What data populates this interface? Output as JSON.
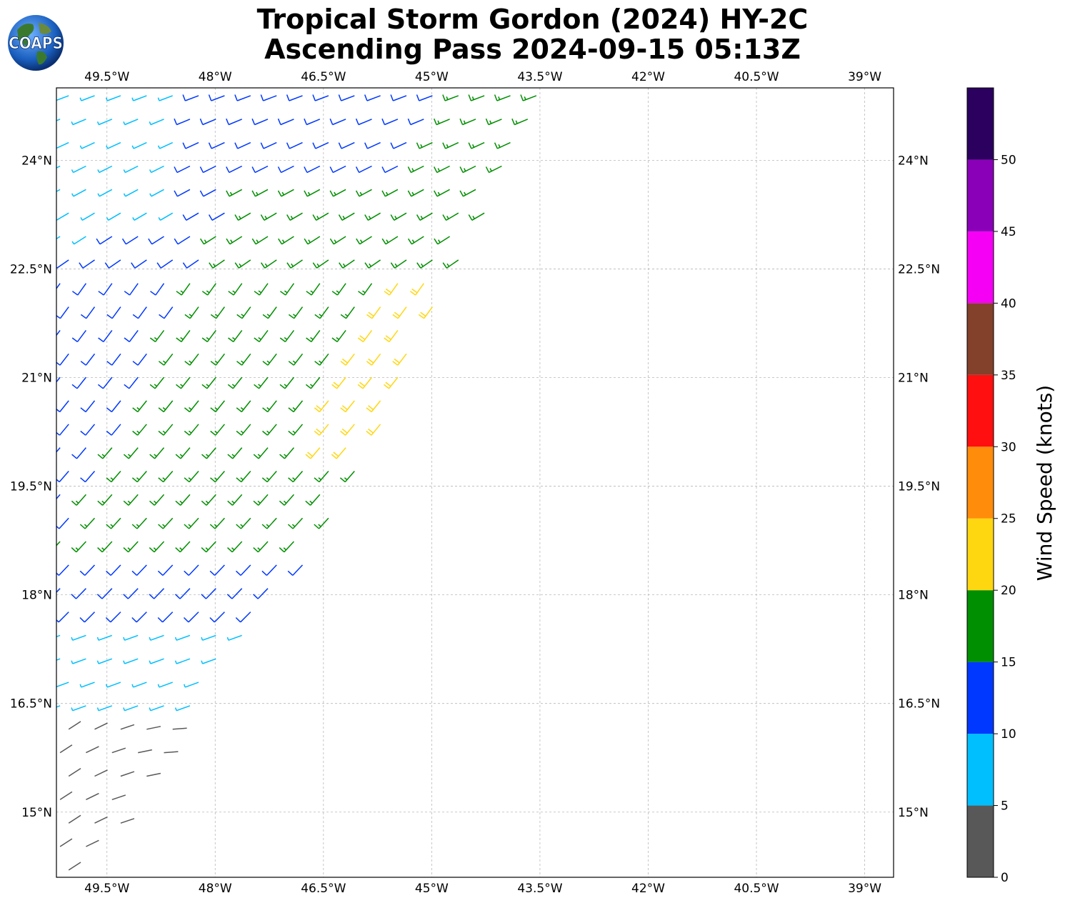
{
  "header": {
    "title_line1": "Tropical Storm Gordon (2024) HY-2C",
    "title_line2": "Ascending Pass 2024-09-15 05:13Z"
  },
  "logo": {
    "text": "COAPS",
    "icon": "globe-logo-icon"
  },
  "map": {
    "lon_range": [
      -50.2,
      -38.6
    ],
    "lat_range": [
      14.1,
      25.0
    ],
    "lon_ticks": [
      {
        "value": -49.5,
        "label": "49.5°W"
      },
      {
        "value": -48.0,
        "label": "48°W"
      },
      {
        "value": -46.5,
        "label": "46.5°W"
      },
      {
        "value": -45.0,
        "label": "45°W"
      },
      {
        "value": -43.5,
        "label": "43.5°W"
      },
      {
        "value": -42.0,
        "label": "42°W"
      },
      {
        "value": -40.5,
        "label": "40.5°W"
      },
      {
        "value": -39.0,
        "label": "39°W"
      }
    ],
    "lat_ticks": [
      {
        "value": 15.0,
        "label": "15°N"
      },
      {
        "value": 16.5,
        "label": "16.5°N"
      },
      {
        "value": 18.0,
        "label": "18°N"
      },
      {
        "value": 19.5,
        "label": "19.5°N"
      },
      {
        "value": 21.0,
        "label": "21°N"
      },
      {
        "value": 22.5,
        "label": "22.5°N"
      },
      {
        "value": 24.0,
        "label": "24°N"
      }
    ],
    "gridlines": true,
    "swath": {
      "description_edge_points": [
        [
          -43.3,
          25.0
        ],
        [
          -44.8,
          22.3
        ],
        [
          -46.0,
          19.8
        ],
        [
          -46.7,
          18.6
        ],
        [
          -47.5,
          17.6
        ],
        [
          -48.3,
          16.3
        ],
        [
          -49.4,
          14.8
        ],
        [
          -50.2,
          14.1
        ]
      ]
    },
    "wind_regions": [
      {
        "category": "0-5",
        "bounds": "south-west corner, lat < 16.3"
      },
      {
        "category": "5-10",
        "bounds": "north-west edge and lat 16.2-17.6"
      },
      {
        "category": "10-15",
        "bounds": "mid band"
      },
      {
        "category": "15-20",
        "bounds": "core band lat 19-23.6"
      },
      {
        "category": "20-25",
        "bounds": "eastern edge lat 19.8-22.4"
      }
    ]
  },
  "colorbar": {
    "label": "Wind Speed (knots)",
    "bins": [
      {
        "from": 0,
        "to": 5,
        "color": "#585858"
      },
      {
        "from": 5,
        "to": 10,
        "color": "#00bfff"
      },
      {
        "from": 10,
        "to": 15,
        "color": "#0038ff"
      },
      {
        "from": 15,
        "to": 20,
        "color": "#008f00"
      },
      {
        "from": 20,
        "to": 25,
        "color": "#ffd710"
      },
      {
        "from": 25,
        "to": 30,
        "color": "#ff8c0a"
      },
      {
        "from": 30,
        "to": 35,
        "color": "#ff0f0f"
      },
      {
        "from": 35,
        "to": 40,
        "color": "#83402b"
      },
      {
        "from": 40,
        "to": 45,
        "color": "#f500f5"
      },
      {
        "from": 45,
        "to": 50,
        "color": "#8a00b8"
      },
      {
        "from": 50,
        "to": 55,
        "color": "#2b005f"
      }
    ],
    "tick_labels": [
      "0",
      "5",
      "10",
      "15",
      "20",
      "25",
      "30",
      "35",
      "40",
      "45",
      "50"
    ]
  }
}
